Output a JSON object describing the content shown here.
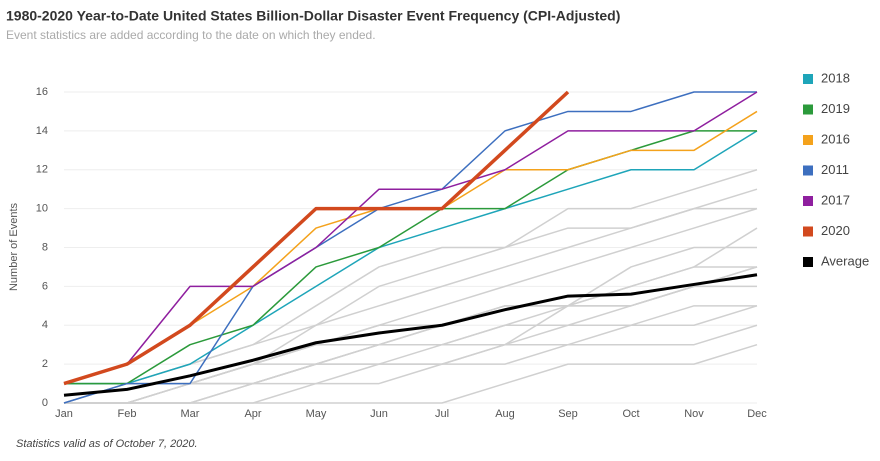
{
  "chart_data": {
    "type": "line",
    "title": "1980-2020 Year-to-Date United States Billion-Dollar Disaster Event Frequency (CPI-Adjusted)",
    "subtitle": "Event statistics are added according to the date on which they ended.",
    "y_label": "Number of Events",
    "footnote": "Statistics valid as of October 7, 2020.",
    "categories": [
      "Jan",
      "Feb",
      "Mar",
      "Apr",
      "May",
      "Jun",
      "Jul",
      "Aug",
      "Sep",
      "Oct",
      "Nov",
      "Dec"
    ],
    "ylim": [
      0,
      16
    ],
    "yticks": [
      0,
      2,
      4,
      6,
      8,
      10,
      12,
      14,
      16
    ],
    "grid": true,
    "legend": "right",
    "series": [
      {
        "name": "2018",
        "color": "#1ea5b9",
        "width": 1.5,
        "values": [
          1,
          1,
          2,
          4,
          6,
          8,
          9,
          10,
          11,
          12,
          12,
          14
        ]
      },
      {
        "name": "2019",
        "color": "#2b9a3b",
        "width": 1.5,
        "values": [
          1,
          1,
          3,
          4,
          7,
          8,
          10,
          10,
          12,
          13,
          14,
          14
        ]
      },
      {
        "name": "2016",
        "color": "#f4a21c",
        "width": 1.5,
        "values": [
          1,
          2,
          4,
          6,
          9,
          10,
          10,
          12,
          12,
          13,
          13,
          15
        ]
      },
      {
        "name": "2011",
        "color": "#3d6fbf",
        "width": 1.5,
        "values": [
          0,
          1,
          1,
          6,
          8,
          10,
          11,
          14,
          15,
          15,
          16,
          16
        ]
      },
      {
        "name": "2017",
        "color": "#8f1f9f",
        "width": 1.5,
        "values": [
          1,
          2,
          6,
          6,
          8,
          11,
          11,
          12,
          14,
          14,
          14,
          16
        ]
      },
      {
        "name": "2020",
        "color": "#d2491e",
        "width": 3.5,
        "values": [
          1,
          2,
          4,
          7,
          10,
          10,
          10,
          13,
          16,
          null,
          null,
          null
        ]
      },
      {
        "name": "Average",
        "color": "#000000",
        "width": 3,
        "values": [
          0.4,
          0.7,
          1.4,
          2.2,
          3.1,
          3.6,
          4.0,
          4.8,
          5.5,
          5.6,
          6.1,
          6.6
        ]
      }
    ],
    "background_color": "#d0d0d0",
    "background_series": [
      {
        "values": [
          0,
          0,
          1,
          1,
          2,
          3,
          4,
          5,
          5,
          6,
          7,
          7
        ]
      },
      {
        "values": [
          0,
          1,
          1,
          2,
          3,
          4,
          5,
          6,
          7,
          8,
          9,
          10
        ]
      },
      {
        "values": [
          0,
          0,
          0,
          1,
          2,
          3,
          3,
          4,
          5,
          5,
          6,
          7
        ]
      },
      {
        "values": [
          1,
          1,
          2,
          3,
          4,
          5,
          6,
          7,
          8,
          9,
          10,
          11
        ]
      },
      {
        "values": [
          0,
          1,
          2,
          3,
          5,
          7,
          8,
          8,
          10,
          10,
          11,
          12
        ]
      },
      {
        "values": [
          0,
          0,
          1,
          2,
          3,
          4,
          4,
          5,
          5,
          7,
          8,
          8
        ]
      },
      {
        "values": [
          0,
          0,
          0,
          0,
          1,
          1,
          2,
          2,
          3,
          4,
          4,
          5
        ]
      },
      {
        "values": [
          0,
          0,
          1,
          1,
          2,
          2,
          3,
          3,
          4,
          5,
          6,
          6
        ]
      },
      {
        "values": [
          1,
          1,
          1,
          2,
          3,
          3,
          3,
          4,
          4,
          4,
          5,
          5
        ]
      },
      {
        "values": [
          0,
          0,
          0,
          0,
          0,
          0,
          0,
          1,
          2,
          2,
          2,
          3
        ]
      },
      {
        "values": [
          0,
          0,
          0,
          1,
          1,
          2,
          2,
          3,
          5,
          5,
          6,
          7
        ]
      },
      {
        "values": [
          1,
          1,
          1,
          1,
          2,
          2,
          2,
          3,
          3,
          3,
          3,
          4
        ]
      },
      {
        "values": [
          0,
          0,
          1,
          2,
          4,
          6,
          7,
          8,
          9,
          9,
          10,
          10
        ]
      },
      {
        "values": [
          0,
          1,
          1,
          2,
          2,
          3,
          4,
          5,
          5,
          6,
          7,
          9
        ]
      }
    ]
  }
}
